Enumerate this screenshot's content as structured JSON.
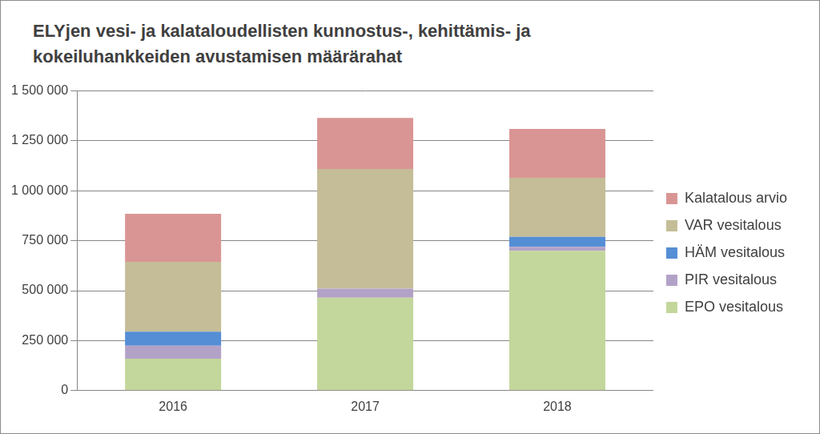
{
  "chart_data": {
    "type": "bar",
    "title": "ELYjen vesi- ja kalataloudellisten kunnostus-, kehittämis- ja kokeiluhankkeiden avustamisen määrärahat",
    "categories": [
      "2016",
      "2017",
      "2018"
    ],
    "series": [
      {
        "name": "EPO vesitalous",
        "color": "#c3d69b",
        "values": [
          160000,
          465000,
          700000
        ]
      },
      {
        "name": "PIR vesitalous",
        "color": "#b3a2c7",
        "values": [
          65000,
          45000,
          20000
        ]
      },
      {
        "name": "HÄM vesitalous",
        "color": "#558ed5",
        "values": [
          70000,
          0,
          50000
        ]
      },
      {
        "name": "VAR vesitalous",
        "color": "#c4bd97",
        "values": [
          350000,
          600000,
          295000
        ]
      },
      {
        "name": "Kalatalous arvio",
        "color": "#d99594",
        "values": [
          240000,
          255000,
          245000
        ]
      }
    ],
    "stacked": true,
    "legend": "right",
    "grid": true,
    "ylim": [
      0,
      1500000
    ],
    "yticks": [
      0,
      {
        "value": 250000,
        "label": "250 000"
      },
      {
        "value": 500000,
        "label": "500 000"
      },
      {
        "value": 750000,
        "label": "750 000"
      },
      {
        "value": 1000000,
        "label": "1 000 000"
      },
      {
        "value": 1250000,
        "label": "1 250 000"
      },
      {
        "value": 1500000,
        "label": "1 500 000"
      }
    ]
  }
}
